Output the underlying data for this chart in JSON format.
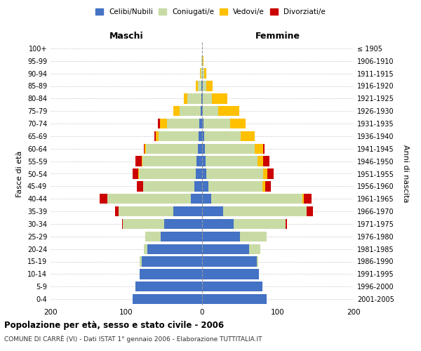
{
  "age_groups": [
    "0-4",
    "5-9",
    "10-14",
    "15-19",
    "20-24",
    "25-29",
    "30-34",
    "35-39",
    "40-44",
    "45-49",
    "50-54",
    "55-59",
    "60-64",
    "65-69",
    "70-74",
    "75-79",
    "80-84",
    "85-89",
    "90-94",
    "95-99",
    "100+"
  ],
  "birth_years": [
    "2001-2005",
    "1996-2000",
    "1991-1995",
    "1986-1990",
    "1981-1985",
    "1976-1980",
    "1971-1975",
    "1966-1970",
    "1961-1965",
    "1956-1960",
    "1951-1955",
    "1946-1950",
    "1941-1945",
    "1936-1940",
    "1931-1935",
    "1926-1930",
    "1921-1925",
    "1916-1920",
    "1911-1915",
    "1906-1910",
    "≤ 1905"
  ],
  "male": {
    "celibi": [
      92,
      88,
      82,
      80,
      72,
      55,
      50,
      38,
      15,
      10,
      8,
      7,
      6,
      5,
      4,
      2,
      1,
      1,
      0,
      0,
      0
    ],
    "coniugati": [
      0,
      0,
      0,
      2,
      5,
      20,
      55,
      72,
      110,
      68,
      75,
      72,
      68,
      52,
      42,
      28,
      18,
      5,
      2,
      1,
      0
    ],
    "vedovi": [
      0,
      0,
      0,
      0,
      0,
      0,
      0,
      0,
      0,
      0,
      1,
      1,
      2,
      4,
      10,
      8,
      5,
      2,
      1,
      0,
      0
    ],
    "divorziati": [
      0,
      0,
      0,
      0,
      0,
      0,
      1,
      5,
      10,
      8,
      8,
      8,
      1,
      2,
      2,
      0,
      0,
      0,
      0,
      0,
      0
    ]
  },
  "female": {
    "nubili": [
      85,
      80,
      75,
      72,
      62,
      50,
      42,
      28,
      12,
      8,
      6,
      5,
      4,
      3,
      2,
      1,
      1,
      1,
      0,
      0,
      0
    ],
    "coniugate": [
      0,
      0,
      0,
      2,
      15,
      35,
      68,
      110,
      120,
      72,
      75,
      68,
      65,
      48,
      35,
      20,
      12,
      5,
      3,
      1,
      0
    ],
    "vedove": [
      0,
      0,
      0,
      0,
      0,
      0,
      0,
      0,
      2,
      3,
      5,
      8,
      12,
      18,
      20,
      28,
      20,
      8,
      3,
      1,
      0
    ],
    "divorziate": [
      0,
      0,
      0,
      0,
      0,
      0,
      2,
      8,
      10,
      8,
      8,
      8,
      1,
      0,
      0,
      0,
      0,
      0,
      0,
      0,
      0
    ]
  },
  "colors": {
    "celibi": "#4472C4",
    "coniugati": "#c8dba5",
    "vedovi": "#ffc000",
    "divorziati": "#cc0000"
  },
  "xlim": 200,
  "title": "Popolazione per età, sesso e stato civile - 2006",
  "subtitle": "COMUNE DI CARRÈ (VI) - Dati ISTAT 1° gennaio 2006 - Elaborazione TUTTITALIA.IT",
  "ylabel_left": "Fasce di età",
  "ylabel_right": "Anni di nascita",
  "legend_labels": [
    "Celibi/Nubili",
    "Coniugati/e",
    "Vedovi/e",
    "Divorziati/e"
  ],
  "maschi_label": "Maschi",
  "femmine_label": "Femmine",
  "bg_color": "#ffffff",
  "grid_color": "#cccccc"
}
